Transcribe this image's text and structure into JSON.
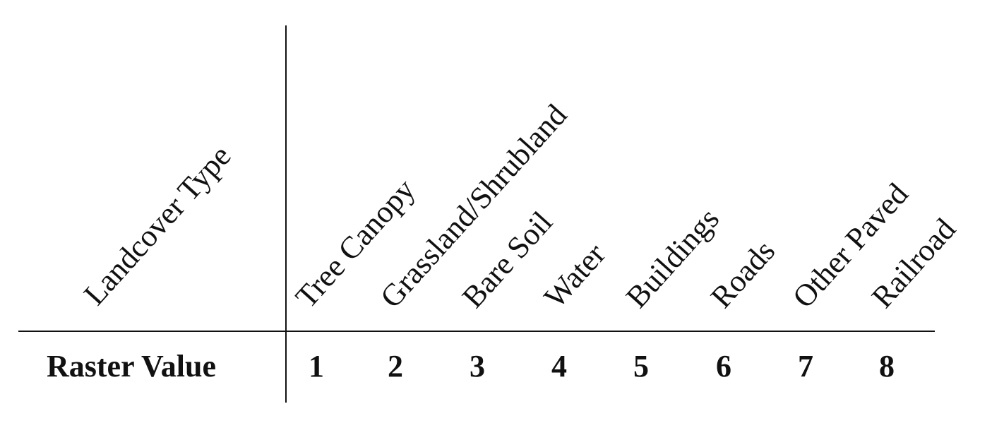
{
  "table": {
    "header_label": "Landcover Type",
    "row_label": "Raster Value",
    "columns": [
      {
        "landcover": "Tree Canopy",
        "value": "1"
      },
      {
        "landcover": "Grassland/Shrubland",
        "value": "2"
      },
      {
        "landcover": "Bare Soil",
        "value": "3"
      },
      {
        "landcover": "Water",
        "value": "4"
      },
      {
        "landcover": "Buildings",
        "value": "5"
      },
      {
        "landcover": "Roads",
        "value": "6"
      },
      {
        "landcover": "Other Paved",
        "value": "7"
      },
      {
        "landcover": "Railroad",
        "value": "8"
      }
    ]
  }
}
